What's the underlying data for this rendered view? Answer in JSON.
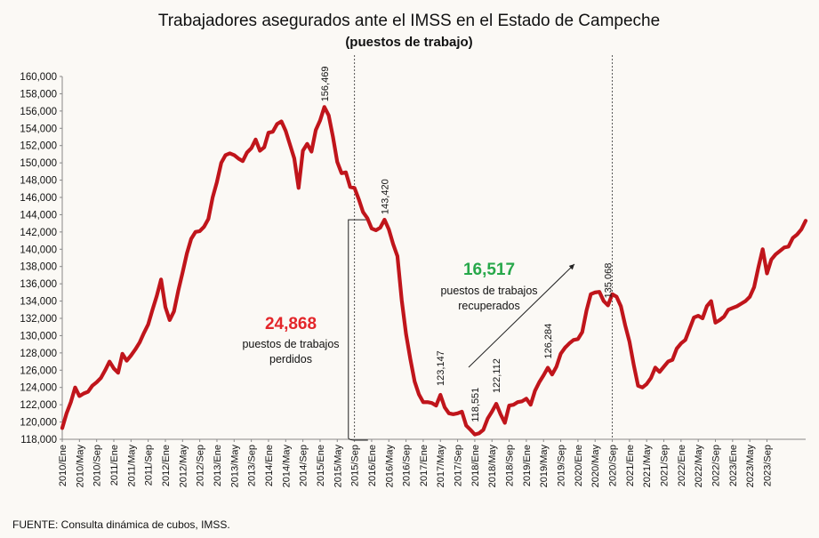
{
  "chart_data": {
    "type": "line",
    "title": "Trabajadores asegurados ante el IMSS en el Estado de Campeche",
    "subtitle": "(puestos de trabajo)",
    "source": "FUENTE: Consulta dinámica de cubos, IMSS.",
    "line_color": "#c0151b",
    "ylim": [
      118000,
      160000
    ],
    "y_ticks": [
      "118,000",
      "120,000",
      "122,000",
      "124,000",
      "126,000",
      "128,000",
      "130,000",
      "132,000",
      "134,000",
      "136,000",
      "138,000",
      "140,000",
      "142,000",
      "144,000",
      "146,000",
      "148,000",
      "150,000",
      "152,000",
      "154,000",
      "156,000",
      "158,000",
      "160,000"
    ],
    "x_ticks": [
      "2010/Ene",
      "2010/May",
      "2010/Sep",
      "2011/Ene",
      "2011/May",
      "2011/Sep",
      "2012/Ene",
      "2012/May",
      "2012/Sep",
      "2013/Ene",
      "2013/May",
      "2013/Sep",
      "2014/Ene",
      "2014/May",
      "2014/Sep",
      "2015/Ene",
      "2015/May",
      "2015/Sep",
      "2016/Ene",
      "2016/May",
      "2016/Sep",
      "2017/Ene",
      "2017/May",
      "2017/Sep",
      "2018/Ene",
      "2018/May",
      "2018/Sep",
      "2019/Ene",
      "2019/May",
      "2019/Sep",
      "2020/Ene",
      "2020/May",
      "2020/Sep",
      "2021/Ene",
      "2021/May",
      "2021/Sep",
      "2022/Ene",
      "2022/May",
      "2022/Sep",
      "2023/Ene",
      "2023/May",
      "2023/Sep"
    ],
    "values": [
      119300,
      121000,
      122300,
      124000,
      123000,
      123300,
      123500,
      124200,
      124600,
      125100,
      126000,
      127000,
      126200,
      125700,
      127900,
      127100,
      127700,
      128400,
      129200,
      130300,
      131300,
      133000,
      134600,
      136500,
      133300,
      131800,
      132800,
      135200,
      137300,
      139500,
      141200,
      142000,
      142100,
      142600,
      143500,
      146000,
      147800,
      150000,
      150900,
      151100,
      150900,
      150500,
      150200,
      151200,
      151700,
      152700,
      151400,
      151800,
      153500,
      153600,
      154500,
      154800,
      153700,
      152100,
      150500,
      147100,
      151400,
      152200,
      151300,
      153800,
      154900,
      156469,
      155500,
      153000,
      150100,
      148800,
      148900,
      147200,
      147100,
      145800,
      144300,
      143600,
      142400,
      142200,
      142500,
      143420,
      142300,
      140600,
      139200,
      134100,
      130200,
      127300,
      124700,
      123200,
      122300,
      122300,
      122200,
      121900,
      123147,
      121700,
      121000,
      120900,
      121000,
      121200,
      119600,
      119100,
      118551,
      118700,
      119100,
      120400,
      121200,
      122112,
      120900,
      119900,
      121900,
      122000,
      122300,
      122400,
      122700,
      122000,
      123600,
      124600,
      125400,
      126284,
      125500,
      126400,
      127900,
      128600,
      129100,
      129500,
      129600,
      130400,
      132900,
      134800,
      135000,
      135068,
      134000,
      133500,
      134800,
      134500,
      133400,
      131200,
      129300,
      126600,
      124200,
      124000,
      124400,
      125100,
      126300,
      125800,
      126400,
      127000,
      127200,
      128500,
      129100,
      129500,
      130800,
      132100,
      132300,
      132000,
      133400,
      134000,
      131500,
      131800,
      132200,
      133000,
      133200,
      133400,
      133700,
      134000,
      134500,
      135600,
      137900,
      140000,
      137200,
      138800,
      139400,
      139800,
      140200,
      140300,
      141300,
      141700,
      142300,
      143300
    ],
    "annotations": {
      "peak_2014": "156,469",
      "peak_2016": "143,420",
      "p_2016sep": "123,147",
      "p_2017may": "118,551",
      "p_2017sep": "122,112",
      "p_2018sep": "126,284",
      "p_2019sep": "135,068"
    },
    "lost": {
      "value": "24,868",
      "line1": "puestos de trabajos",
      "line2": "perdidos"
    },
    "recovered": {
      "value": "16,517",
      "line1": "puestos de trabajos",
      "line2": "recuperados"
    }
  }
}
